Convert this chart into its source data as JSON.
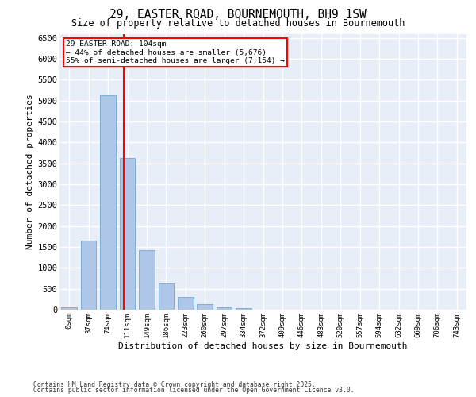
{
  "title_line1": "29, EASTER ROAD, BOURNEMOUTH, BH9 1SW",
  "title_line2": "Size of property relative to detached houses in Bournemouth",
  "xlabel": "Distribution of detached houses by size in Bournemouth",
  "ylabel": "Number of detached properties",
  "bar_labels": [
    "0sqm",
    "37sqm",
    "74sqm",
    "111sqm",
    "149sqm",
    "186sqm",
    "223sqm",
    "260sqm",
    "297sqm",
    "334sqm",
    "372sqm",
    "409sqm",
    "446sqm",
    "483sqm",
    "520sqm",
    "557sqm",
    "594sqm",
    "632sqm",
    "669sqm",
    "706sqm",
    "743sqm"
  ],
  "bar_values": [
    65,
    1650,
    5120,
    3620,
    1430,
    620,
    310,
    130,
    65,
    40,
    0,
    0,
    0,
    0,
    0,
    0,
    0,
    0,
    0,
    0,
    0
  ],
  "bar_color": "#aec6e8",
  "bar_edgecolor": "#6fa8d8",
  "bar_width": 0.8,
  "annotation_line1": "29 EASTER ROAD: 104sqm",
  "annotation_line2": "← 44% of detached houses are smaller (5,676)",
  "annotation_line3": "55% of semi-detached houses are larger (7,154) →",
  "vline_x": 2.81,
  "ylim": [
    0,
    6600
  ],
  "yticks": [
    0,
    500,
    1000,
    1500,
    2000,
    2500,
    3000,
    3500,
    4000,
    4500,
    5000,
    5500,
    6000,
    6500
  ],
  "bg_color": "#e8eef8",
  "grid_color": "#ffffff",
  "footer1": "Contains HM Land Registry data © Crown copyright and database right 2025.",
  "footer2": "Contains public sector information licensed under the Open Government Licence v3.0."
}
